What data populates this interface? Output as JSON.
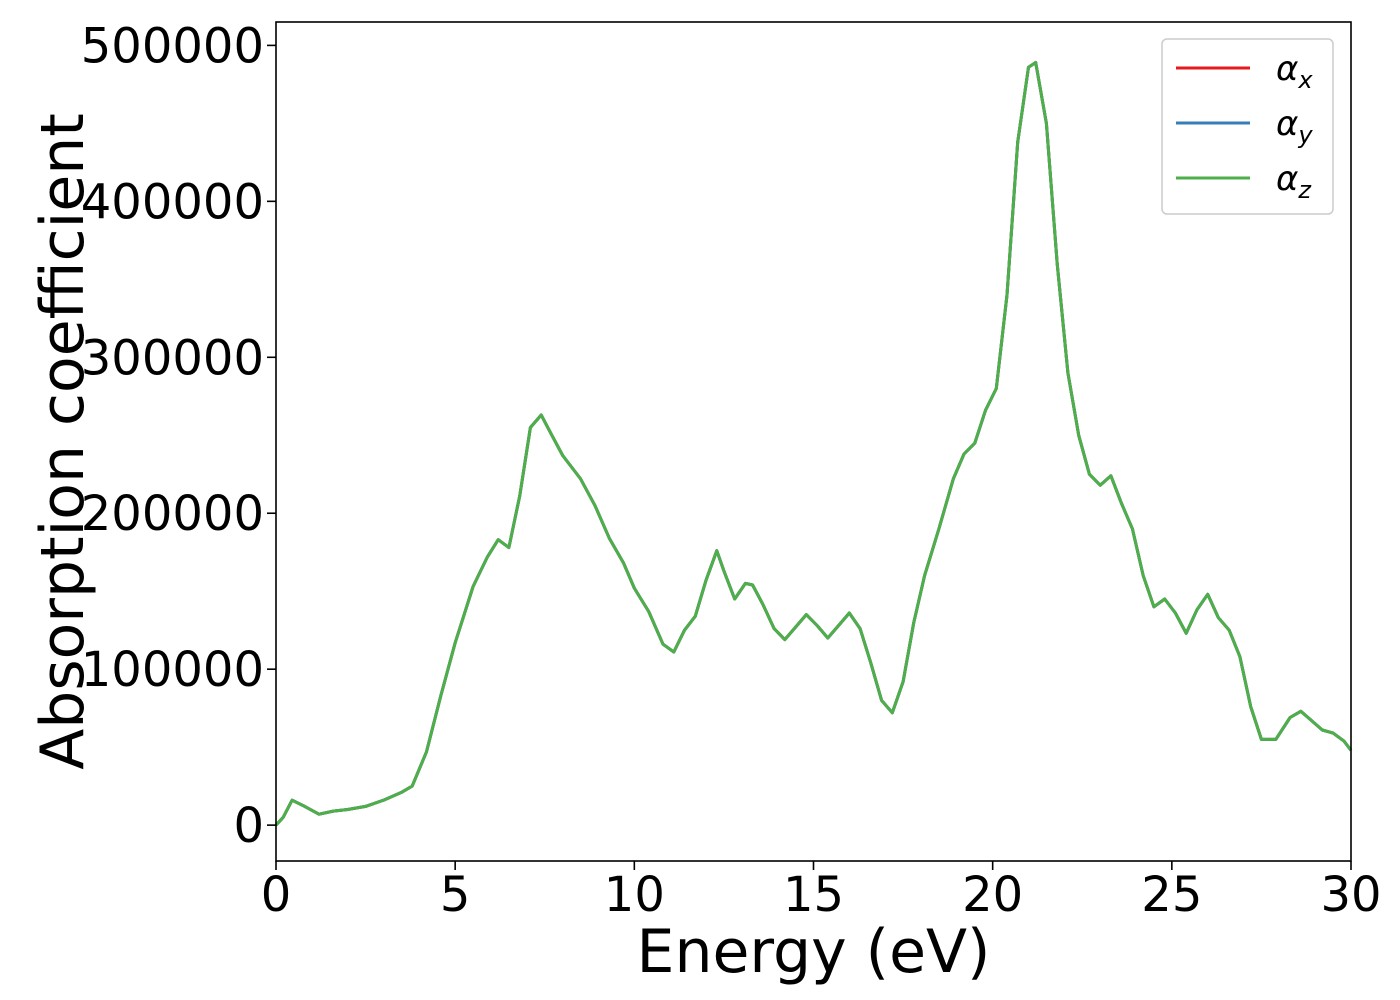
{
  "chart_data": {
    "type": "line",
    "xlabel": "Energy (eV)",
    "ylabel": "Absorption coefficient",
    "xlim": [
      0,
      30
    ],
    "ylim": [
      -23000,
      515000
    ],
    "x_ticks": [
      0,
      5,
      10,
      15,
      20,
      25,
      30
    ],
    "x_tick_labels": [
      "0",
      "5",
      "10",
      "15",
      "20",
      "25",
      "30"
    ],
    "y_ticks": [
      0,
      100000,
      200000,
      300000,
      400000,
      500000
    ],
    "y_tick_labels": [
      "0",
      "100000",
      "200000",
      "300000",
      "400000",
      "500000"
    ],
    "grid": false,
    "legend_position": "top-right",
    "series": [
      {
        "name": "α",
        "sub": "x",
        "color": "#e41a1c"
      },
      {
        "name": "α",
        "sub": "y",
        "color": "#377eb8"
      },
      {
        "name": "α",
        "sub": "z",
        "color": "#4daf4a"
      }
    ],
    "x": [
      0,
      0.2,
      0.45,
      0.8,
      1.2,
      1.6,
      2.0,
      2.5,
      3.0,
      3.5,
      3.8,
      4.2,
      4.6,
      5.0,
      5.5,
      5.9,
      6.2,
      6.5,
      6.8,
      7.1,
      7.4,
      7.7,
      8.0,
      8.5,
      8.9,
      9.3,
      9.7,
      10.0,
      10.4,
      10.8,
      11.1,
      11.4,
      11.7,
      12.0,
      12.3,
      12.5,
      12.8,
      13.1,
      13.3,
      13.6,
      13.9,
      14.2,
      14.5,
      14.8,
      15.1,
      15.4,
      15.7,
      16.0,
      16.3,
      16.6,
      16.9,
      17.2,
      17.5,
      17.8,
      18.1,
      18.5,
      18.9,
      19.2,
      19.5,
      19.8,
      20.1,
      20.4,
      20.7,
      21.0,
      21.2,
      21.5,
      21.8,
      22.1,
      22.4,
      22.7,
      23.0,
      23.3,
      23.6,
      23.9,
      24.2,
      24.5,
      24.8,
      25.1,
      25.4,
      25.7,
      26.0,
      26.3,
      26.6,
      26.9,
      27.2,
      27.5,
      27.9,
      28.3,
      28.6,
      28.9,
      29.2,
      29.5,
      29.8,
      30.0
    ],
    "y": [
      0,
      5000,
      16000,
      12000,
      7000,
      9000,
      10000,
      12000,
      16000,
      21000,
      25000,
      47000,
      83000,
      117000,
      153000,
      172000,
      183000,
      178000,
      211000,
      255000,
      263000,
      250000,
      237000,
      222000,
      205000,
      184000,
      168000,
      152000,
      137000,
      116000,
      111000,
      125000,
      134000,
      157000,
      176000,
      163000,
      145000,
      155000,
      154000,
      141000,
      126000,
      119000,
      127000,
      135000,
      128000,
      120000,
      128000,
      136000,
      126000,
      104000,
      80000,
      72000,
      92000,
      130000,
      160000,
      190000,
      222000,
      238000,
      245000,
      266000,
      280000,
      340000,
      438000,
      486000,
      489000,
      450000,
      360000,
      290000,
      250000,
      225000,
      218000,
      224000,
      206000,
      190000,
      160000,
      140000,
      145000,
      136000,
      123000,
      138000,
      148000,
      133000,
      125000,
      108000,
      76000,
      55000,
      55000,
      69000,
      73000,
      67000,
      61000,
      59000,
      54000,
      48000
    ]
  }
}
